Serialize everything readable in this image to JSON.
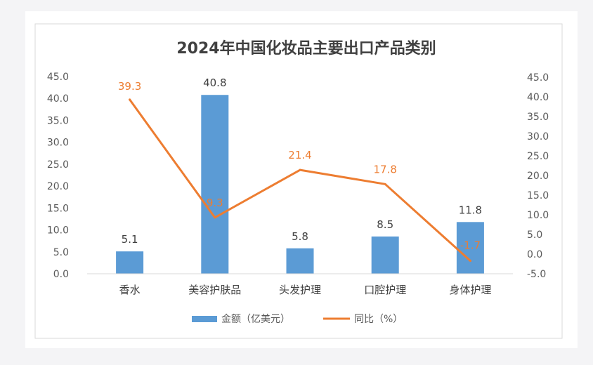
{
  "chart_data": {
    "type": "bar+line",
    "title": "2024年中国化妆品主要出口产品类别",
    "categories": [
      "香水",
      "美容护肤品",
      "头发护理",
      "口腔护理",
      "身体护理"
    ],
    "series": [
      {
        "name": "金额（亿美元）",
        "type": "bar",
        "axis": "left",
        "values": [
          5.1,
          40.8,
          5.8,
          8.5,
          11.8
        ],
        "labels": [
          "5.1",
          "40.8",
          "5.8",
          "8.5",
          "11.8"
        ]
      },
      {
        "name": "同比（%）",
        "type": "line",
        "axis": "right",
        "values": [
          39.3,
          9.3,
          21.4,
          17.8,
          -1.7
        ],
        "labels": [
          "39.3",
          "9.3",
          "21.4",
          "17.8",
          "-1.7"
        ]
      }
    ],
    "y_left": {
      "range": [
        0,
        45
      ],
      "ticks": [
        "0.0",
        "5.0",
        "10.0",
        "15.0",
        "20.0",
        "25.0",
        "30.0",
        "35.0",
        "40.0",
        "45.0"
      ]
    },
    "y_right": {
      "range": [
        -5,
        45
      ],
      "ticks": [
        "-5.0",
        "0.0",
        "5.0",
        "10.0",
        "15.0",
        "20.0",
        "25.0",
        "30.0",
        "35.0",
        "40.0",
        "45.0"
      ]
    },
    "legend_position": "bottom",
    "grid": false,
    "colors": {
      "bar": "#5b9bd5",
      "line": "#ed7d31"
    }
  }
}
